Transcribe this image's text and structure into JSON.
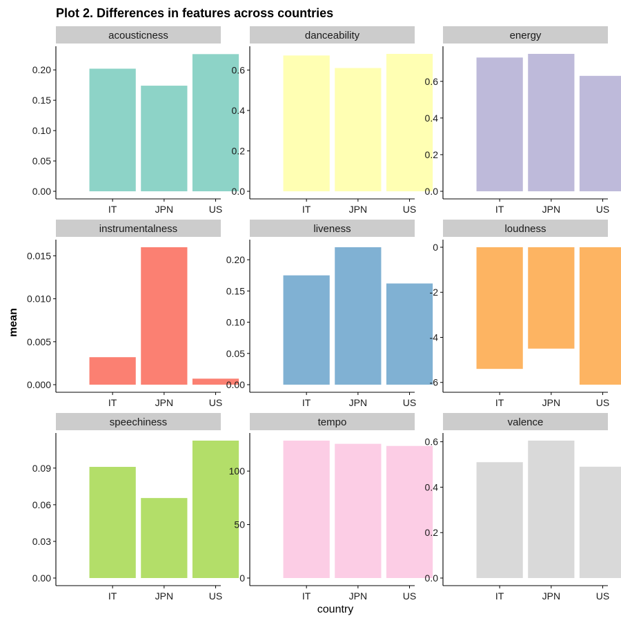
{
  "title": "Plot 2. Differences in features across countries",
  "xlabel": "country",
  "ylabel": "mean",
  "chart_data": {
    "type": "bar",
    "title": "Plot 2. Differences in features across countries",
    "xlabel": "country",
    "ylabel": "mean",
    "categories": [
      "IT",
      "JPN",
      "US"
    ],
    "grid": false,
    "panels": [
      {
        "name": "acousticness",
        "color": "#8DD3C7",
        "values": [
          0.202,
          0.174,
          0.226
        ],
        "ylim": [
          0,
          0.2264
        ],
        "ticks": [
          0,
          0.05,
          0.1,
          0.15,
          0.2
        ],
        "tick_labels": [
          "0.00",
          "0.05",
          "0.10",
          "0.15",
          "0.20"
        ]
      },
      {
        "name": "danceability",
        "color": "#FFFFB3",
        "values": [
          0.672,
          0.61,
          0.68
        ],
        "ylim": [
          0,
          0.68
        ],
        "ticks": [
          0,
          0.2,
          0.4,
          0.6
        ],
        "tick_labels": [
          "0.0",
          "0.2",
          "0.4",
          "0.6"
        ]
      },
      {
        "name": "energy",
        "color": "#BEBADA",
        "values": [
          0.73,
          0.75,
          0.63
        ],
        "ylim": [
          0,
          0.75
        ],
        "ticks": [
          0,
          0.2,
          0.4,
          0.6
        ],
        "tick_labels": [
          "0.0",
          "0.2",
          "0.4",
          "0.6"
        ]
      },
      {
        "name": "instrumentalness",
        "color": "#FB8072",
        "values": [
          0.0032,
          0.016,
          0.0007
        ],
        "ylim": [
          0,
          0.016
        ],
        "ticks": [
          0,
          0.005,
          0.01,
          0.015
        ],
        "tick_labels": [
          "0.000",
          "0.005",
          "0.010",
          "0.015"
        ]
      },
      {
        "name": "liveness",
        "color": "#80B1D3",
        "values": [
          0.175,
          0.22,
          0.162
        ],
        "ylim": [
          0,
          0.22
        ],
        "ticks": [
          0,
          0.05,
          0.1,
          0.15,
          0.2
        ],
        "tick_labels": [
          "0.00",
          "0.05",
          "0.10",
          "0.15",
          "0.20"
        ]
      },
      {
        "name": "loudness",
        "color": "#FDB462",
        "values": [
          -5.4,
          -4.5,
          -6.1
        ],
        "ylim": [
          -6.1,
          0
        ],
        "ticks": [
          0,
          -2,
          -4,
          -6
        ],
        "tick_labels": [
          "0",
          "-2",
          "-4",
          "-6"
        ]
      },
      {
        "name": "speechiness",
        "color": "#B3DE69",
        "values": [
          0.091,
          0.0655,
          0.1125
        ],
        "ylim": [
          0,
          0.1125
        ],
        "ticks": [
          0,
          0.03,
          0.06,
          0.09
        ],
        "tick_labels": [
          "0.00",
          "0.03",
          "0.06",
          "0.09"
        ]
      },
      {
        "name": "tempo",
        "color": "#FCCDE5",
        "values": [
          128.5,
          125.5,
          123.5
        ],
        "ylim": [
          0,
          128.5
        ],
        "ticks": [
          0,
          50,
          100
        ],
        "tick_labels": [
          "0",
          "50",
          "100"
        ]
      },
      {
        "name": "valence",
        "color": "#D9D9D9",
        "values": [
          0.51,
          0.605,
          0.49
        ],
        "ylim": [
          0,
          0.605
        ],
        "ticks": [
          0,
          0.2,
          0.4,
          0.6
        ],
        "tick_labels": [
          "0.0",
          "0.2",
          "0.4",
          "0.6"
        ]
      }
    ]
  }
}
